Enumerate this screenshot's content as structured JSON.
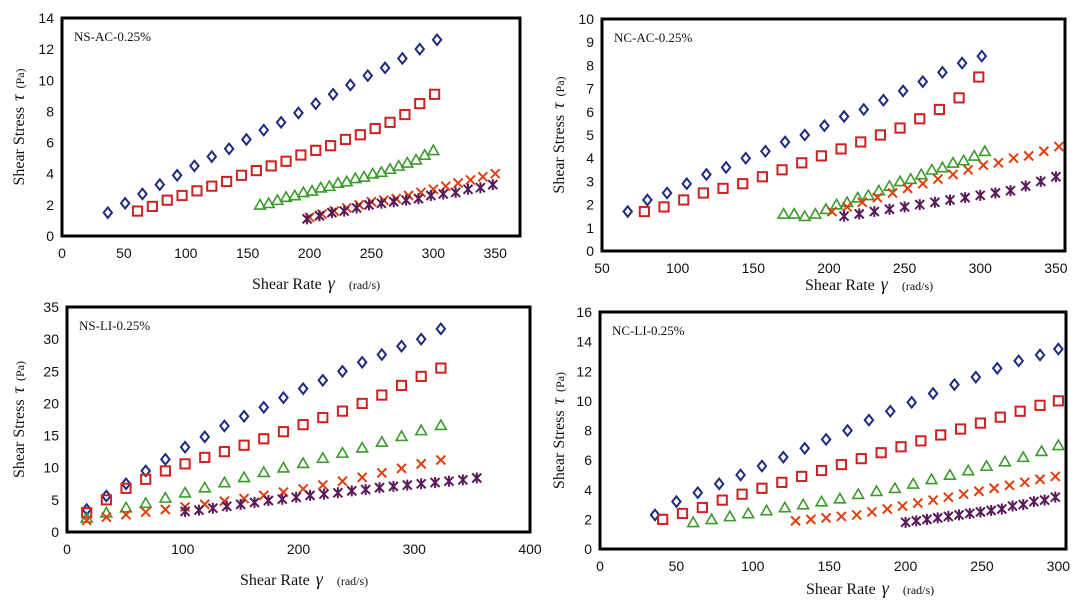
{
  "chart_data": [
    {
      "type": "scatter",
      "title": "NS-AC-0.25%",
      "xlabel": "Shear Rate",
      "xsymbol": "γ",
      "xunit": "(rad/s)",
      "ylabel": "Shear Stress",
      "ysymbol": "τ",
      "yunit": "(Pa)",
      "xlim": [
        0,
        370
      ],
      "ylim": [
        0,
        14
      ],
      "xticks": [
        0,
        50,
        100,
        150,
        200,
        250,
        300,
        350
      ],
      "yticks": [
        0,
        2,
        4,
        6,
        8,
        10,
        12,
        14
      ],
      "series": [
        {
          "marker": "diamond",
          "color": "#1f2a80",
          "x": [
            37,
            51,
            65,
            79,
            93,
            107,
            121,
            135,
            149,
            163,
            177,
            191,
            205,
            219,
            233,
            247,
            261,
            275,
            289,
            303
          ],
          "y": [
            1.5,
            2.1,
            2.7,
            3.3,
            3.9,
            4.5,
            5.1,
            5.6,
            6.2,
            6.8,
            7.3,
            7.9,
            8.5,
            9.1,
            9.7,
            10.3,
            10.8,
            11.4,
            12.0,
            12.6
          ]
        },
        {
          "marker": "square",
          "color": "#cc2222",
          "x": [
            61,
            73,
            85,
            97,
            109,
            121,
            133,
            145,
            157,
            169,
            181,
            193,
            205,
            217,
            229,
            241,
            253,
            265,
            277,
            289,
            301
          ],
          "y": [
            1.6,
            1.9,
            2.3,
            2.6,
            2.9,
            3.2,
            3.5,
            3.9,
            4.2,
            4.5,
            4.8,
            5.2,
            5.5,
            5.8,
            6.2,
            6.5,
            6.9,
            7.3,
            7.8,
            8.5,
            9.1
          ]
        },
        {
          "marker": "triangle",
          "color": "#3a9a2a",
          "x": [
            160,
            167,
            174,
            181,
            188,
            195,
            202,
            209,
            216,
            223,
            230,
            237,
            244,
            251,
            258,
            265,
            272,
            279,
            286,
            293,
            300
          ],
          "y": [
            2.0,
            2.1,
            2.3,
            2.5,
            2.6,
            2.8,
            2.9,
            3.1,
            3.2,
            3.4,
            3.5,
            3.7,
            3.8,
            4.0,
            4.1,
            4.3,
            4.5,
            4.7,
            4.9,
            5.2,
            5.5
          ]
        },
        {
          "marker": "x",
          "color": "#e04010",
          "x": [
            200,
            210,
            220,
            230,
            240,
            250,
            260,
            270,
            280,
            290,
            300,
            310,
            320,
            330,
            340,
            350
          ],
          "y": [
            1.2,
            1.4,
            1.6,
            1.8,
            2.0,
            2.2,
            2.3,
            2.4,
            2.6,
            2.8,
            3.0,
            3.2,
            3.4,
            3.6,
            3.8,
            4.0
          ]
        },
        {
          "marker": "star",
          "color": "#5a1a5a",
          "x": [
            198,
            208,
            218,
            228,
            238,
            248,
            258,
            268,
            278,
            288,
            298,
            308,
            318,
            328,
            338,
            348
          ],
          "y": [
            1.1,
            1.3,
            1.5,
            1.6,
            1.8,
            2.0,
            2.1,
            2.2,
            2.3,
            2.4,
            2.6,
            2.7,
            2.8,
            3.0,
            3.1,
            3.3
          ]
        }
      ]
    },
    {
      "type": "scatter",
      "title": "NC-AC-0.25%",
      "xlabel": "Shear Rate",
      "xsymbol": "γ",
      "xunit": "(rad/s)",
      "ylabel": "Shear Stress",
      "ysymbol": "τ",
      "yunit": "(Pa)",
      "xlim": [
        50,
        356
      ],
      "ylim": [
        0,
        10
      ],
      "xticks": [
        50,
        100,
        150,
        200,
        250,
        300,
        350
      ],
      "yticks": [
        0,
        1,
        2,
        3,
        4,
        5,
        6,
        7,
        8,
        9,
        10
      ],
      "series": [
        {
          "marker": "diamond",
          "color": "#1f2a80",
          "x": [
            67,
            80,
            93,
            106,
            119,
            132,
            145,
            158,
            171,
            184,
            197,
            210,
            223,
            236,
            249,
            262,
            275,
            288,
            301
          ],
          "y": [
            1.7,
            2.2,
            2.5,
            2.9,
            3.3,
            3.6,
            4.0,
            4.3,
            4.7,
            5.0,
            5.4,
            5.8,
            6.1,
            6.5,
            6.9,
            7.3,
            7.7,
            8.1,
            8.4
          ]
        },
        {
          "marker": "square",
          "color": "#cc2222",
          "x": [
            78,
            91,
            104,
            117,
            130,
            143,
            156,
            169,
            182,
            195,
            208,
            221,
            234,
            247,
            260,
            273,
            286,
            299
          ],
          "y": [
            1.7,
            1.9,
            2.2,
            2.5,
            2.7,
            2.9,
            3.2,
            3.5,
            3.8,
            4.1,
            4.4,
            4.7,
            5.0,
            5.3,
            5.7,
            6.1,
            6.6,
            7.5
          ]
        },
        {
          "marker": "triangle",
          "color": "#3a9a2a",
          "x": [
            170,
            177,
            184,
            191,
            198,
            205,
            212,
            219,
            226,
            233,
            240,
            247,
            254,
            261,
            268,
            275,
            282,
            289,
            296,
            303
          ],
          "y": [
            1.6,
            1.6,
            1.5,
            1.6,
            1.8,
            2.0,
            2.1,
            2.3,
            2.4,
            2.6,
            2.8,
            3.0,
            3.1,
            3.3,
            3.5,
            3.6,
            3.8,
            3.9,
            4.1,
            4.3
          ]
        },
        {
          "marker": "x",
          "color": "#e04010",
          "x": [
            202,
            212,
            222,
            232,
            242,
            252,
            262,
            272,
            282,
            292,
            302,
            312,
            322,
            332,
            342,
            352
          ],
          "y": [
            1.7,
            1.9,
            2.1,
            2.3,
            2.5,
            2.7,
            2.9,
            3.1,
            3.3,
            3.5,
            3.7,
            3.8,
            4.0,
            4.1,
            4.3,
            4.5
          ]
        },
        {
          "marker": "star",
          "color": "#5a1a5a",
          "x": [
            210,
            220,
            230,
            240,
            250,
            260,
            270,
            280,
            290,
            300,
            310,
            320,
            330,
            340,
            350
          ],
          "y": [
            1.5,
            1.6,
            1.7,
            1.8,
            1.9,
            2.0,
            2.1,
            2.2,
            2.3,
            2.4,
            2.5,
            2.6,
            2.8,
            3.0,
            3.2
          ]
        }
      ]
    },
    {
      "type": "scatter",
      "title": "NS-LI-0.25%",
      "xlabel": "Shear Rate",
      "xsymbol": "γ",
      "xunit": "(rad/s)",
      "ylabel": "Shear Stress",
      "ysymbol": "τ",
      "yunit": "(Pa)",
      "xlim": [
        0,
        400
      ],
      "ylim": [
        0,
        35
      ],
      "xticks": [
        0,
        100,
        200,
        300,
        400
      ],
      "yticks": [
        0,
        5,
        10,
        15,
        20,
        25,
        30,
        35
      ],
      "series": [
        {
          "marker": "diamond",
          "color": "#1f2a80",
          "x": [
            17,
            34,
            51,
            68,
            85,
            102,
            119,
            136,
            153,
            170,
            187,
            204,
            221,
            238,
            255,
            272,
            289,
            306,
            323
          ],
          "y": [
            3.5,
            5.6,
            7.5,
            9.5,
            11.3,
            13.2,
            14.8,
            16.5,
            18.0,
            19.4,
            20.9,
            22.3,
            23.6,
            25.0,
            26.4,
            27.6,
            28.9,
            30.0,
            31.6
          ]
        },
        {
          "marker": "square",
          "color": "#cc2222",
          "x": [
            17,
            34,
            51,
            68,
            85,
            102,
            119,
            136,
            153,
            170,
            187,
            204,
            221,
            238,
            255,
            272,
            289,
            306,
            323
          ],
          "y": [
            3.0,
            5.0,
            6.8,
            8.2,
            9.5,
            10.6,
            11.6,
            12.5,
            13.5,
            14.5,
            15.6,
            16.7,
            17.8,
            18.8,
            20.0,
            21.3,
            22.8,
            24.2,
            25.5
          ]
        },
        {
          "marker": "triangle",
          "color": "#3a9a2a",
          "x": [
            17,
            34,
            51,
            68,
            85,
            102,
            119,
            136,
            153,
            170,
            187,
            204,
            221,
            238,
            255,
            272,
            289,
            306,
            323
          ],
          "y": [
            2.2,
            3.0,
            3.8,
            4.5,
            5.3,
            6.1,
            6.9,
            7.7,
            8.5,
            9.3,
            10.0,
            10.7,
            11.5,
            12.3,
            13.1,
            14.0,
            14.9,
            15.8,
            16.6
          ]
        },
        {
          "marker": "x",
          "color": "#e04010",
          "x": [
            17,
            34,
            51,
            68,
            85,
            102,
            119,
            136,
            153,
            170,
            187,
            204,
            221,
            238,
            255,
            272,
            289,
            306,
            323
          ],
          "y": [
            1.8,
            2.3,
            2.7,
            3.1,
            3.5,
            3.9,
            4.3,
            4.8,
            5.2,
            5.7,
            6.2,
            6.7,
            7.3,
            7.9,
            8.5,
            9.2,
            9.9,
            10.6,
            11.2
          ]
        },
        {
          "marker": "star",
          "color": "#5a1a5a",
          "x": [
            102,
            114,
            126,
            138,
            150,
            162,
            174,
            186,
            198,
            210,
            222,
            234,
            246,
            258,
            270,
            282,
            294,
            306,
            318,
            330,
            342,
            354
          ],
          "y": [
            3.2,
            3.4,
            3.7,
            4.0,
            4.3,
            4.6,
            4.9,
            5.1,
            5.4,
            5.7,
            5.9,
            6.1,
            6.4,
            6.6,
            6.9,
            7.1,
            7.3,
            7.5,
            7.7,
            7.9,
            8.1,
            8.4
          ]
        }
      ]
    },
    {
      "type": "scatter",
      "title": "NC-LI-0.25%",
      "xlabel": "Shear Rate",
      "xsymbol": "γ",
      "xunit": "(rad/s)",
      "ylabel": "Shear Stress",
      "ysymbol": "τ",
      "yunit": "(Pa)",
      "xlim": [
        0,
        305
      ],
      "ylim": [
        0,
        16
      ],
      "xticks": [
        0,
        50,
        100,
        150,
        200,
        250,
        300
      ],
      "yticks": [
        0,
        2,
        4,
        6,
        8,
        10,
        12,
        14,
        16
      ],
      "series": [
        {
          "marker": "diamond",
          "color": "#1f2a80",
          "x": [
            36,
            50,
            64,
            78,
            92,
            106,
            120,
            134,
            148,
            162,
            176,
            190,
            204,
            218,
            232,
            246,
            260,
            274,
            288,
            300
          ],
          "y": [
            2.3,
            3.2,
            3.8,
            4.4,
            5.0,
            5.6,
            6.2,
            6.8,
            7.4,
            8.0,
            8.7,
            9.3,
            9.9,
            10.5,
            11.1,
            11.6,
            12.2,
            12.7,
            13.1,
            13.5
          ]
        },
        {
          "marker": "square",
          "color": "#cc2222",
          "x": [
            41,
            54,
            67,
            80,
            93,
            106,
            119,
            132,
            145,
            158,
            171,
            184,
            197,
            210,
            223,
            236,
            249,
            262,
            275,
            288,
            300
          ],
          "y": [
            2.0,
            2.4,
            2.8,
            3.3,
            3.7,
            4.1,
            4.5,
            4.9,
            5.3,
            5.7,
            6.1,
            6.5,
            6.9,
            7.3,
            7.7,
            8.1,
            8.5,
            8.9,
            9.3,
            9.7,
            10.0
          ]
        },
        {
          "marker": "triangle",
          "color": "#3a9a2a",
          "x": [
            61,
            73,
            85,
            97,
            109,
            121,
            133,
            145,
            157,
            169,
            181,
            193,
            205,
            217,
            229,
            241,
            253,
            265,
            277,
            289,
            300
          ],
          "y": [
            1.8,
            2.0,
            2.2,
            2.4,
            2.6,
            2.8,
            3.0,
            3.2,
            3.4,
            3.7,
            3.9,
            4.1,
            4.4,
            4.7,
            5.0,
            5.3,
            5.6,
            5.9,
            6.2,
            6.6,
            7.0
          ]
        },
        {
          "marker": "x",
          "color": "#e04010",
          "x": [
            128,
            138,
            148,
            158,
            168,
            178,
            188,
            198,
            208,
            218,
            228,
            238,
            248,
            258,
            268,
            278,
            288,
            298
          ],
          "y": [
            1.9,
            2.0,
            2.1,
            2.2,
            2.3,
            2.5,
            2.7,
            2.9,
            3.1,
            3.3,
            3.5,
            3.7,
            3.9,
            4.1,
            4.3,
            4.5,
            4.7,
            4.9
          ]
        },
        {
          "marker": "star",
          "color": "#5a1a5a",
          "x": [
            200,
            207,
            214,
            221,
            228,
            235,
            242,
            249,
            256,
            263,
            270,
            277,
            284,
            291,
            298
          ],
          "y": [
            1.8,
            1.9,
            2.0,
            2.1,
            2.2,
            2.3,
            2.4,
            2.5,
            2.6,
            2.7,
            2.9,
            3.0,
            3.2,
            3.3,
            3.5
          ]
        }
      ]
    }
  ]
}
